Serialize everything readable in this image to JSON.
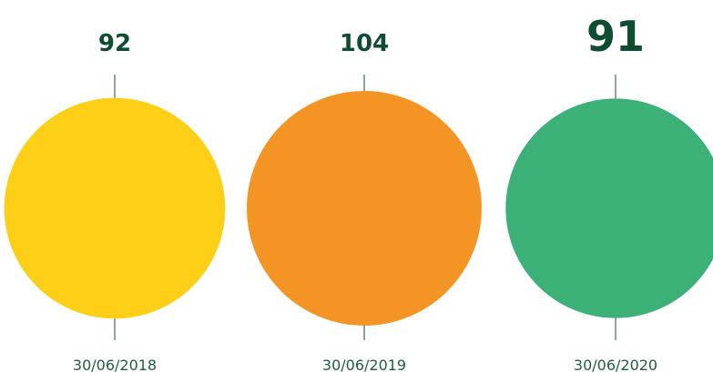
{
  "chart_data": {
    "type": "bubble",
    "title": "",
    "categories": [
      "30/06/2018",
      "30/06/2019",
      "30/06/2020"
    ],
    "values": [
      92,
      104,
      91
    ],
    "value_labels": [
      "92",
      "104",
      "91"
    ],
    "highlighted_index": 2,
    "legend": "none",
    "grid": false,
    "colors": {
      "bubbles": [
        "#FDD017",
        "#F39424",
        "#3BB077"
      ],
      "text": "#0E4D30",
      "dates": "#1E5E3C",
      "lines": "#1E4D34"
    }
  }
}
